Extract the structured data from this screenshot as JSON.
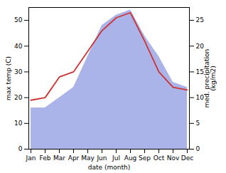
{
  "chart_data": {
    "type": "line",
    "categories": [
      "Jan",
      "Feb",
      "Mar",
      "Apr",
      "May",
      "Jun",
      "Jul",
      "Aug",
      "Sep",
      "Oct",
      "Nov",
      "Dec"
    ],
    "xlabel": "date (month)",
    "ylabel": "max temp (C)",
    "y2label": "med. precipitation\n(kg/m2)",
    "ylim": [
      0,
      55
    ],
    "yticks": [
      0,
      10,
      20,
      30,
      40,
      50
    ],
    "y2lim": [
      0,
      27.5
    ],
    "y2ticks": [
      0,
      5,
      10,
      15,
      20,
      25
    ],
    "series": [
      {
        "type": "area",
        "axis": "y2",
        "color": "#aab4e8",
        "values": [
          8,
          8,
          10,
          12,
          18,
          24,
          26,
          27,
          22,
          18,
          13,
          12
        ]
      },
      {
        "type": "line",
        "color": "#cc3333",
        "values": [
          19,
          20,
          28,
          30,
          38,
          46,
          51,
          53,
          42,
          30,
          24,
          23
        ]
      }
    ]
  }
}
